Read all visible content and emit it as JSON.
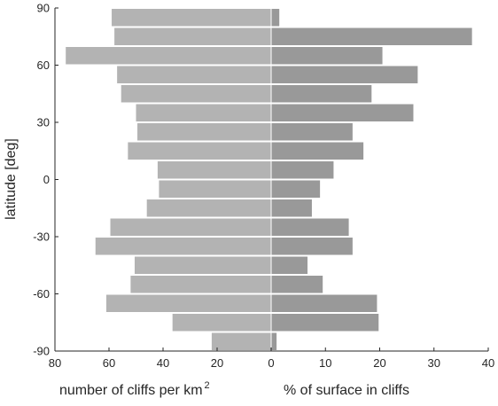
{
  "chart_data": {
    "type": "bar",
    "orientation": "horizontal",
    "layout": "back-to-back",
    "ylabel": "latitude [deg]",
    "ylim": [
      -90,
      90
    ],
    "yticks": [
      "-90",
      "-60",
      "-30",
      "0",
      "30",
      "60",
      "90"
    ],
    "xlabel_left": {
      "text": "number of cliffs per km",
      "superscript": "2"
    },
    "xlabel_right": "% of surface in cliffs",
    "left_xlim": [
      0,
      80
    ],
    "left_xticks": [
      "80",
      "60",
      "40",
      "20",
      "0"
    ],
    "right_xlim": [
      0,
      40
    ],
    "right_xticks": [
      "0",
      "10",
      "20",
      "30",
      "40"
    ],
    "bin_centers": [
      85,
      75,
      65,
      55,
      45,
      35,
      25,
      15,
      5,
      -5,
      -15,
      -25,
      -35,
      -45,
      -55,
      -65,
      -75,
      -85
    ],
    "bin_width": 10,
    "series": [
      {
        "side": "left",
        "color": "#b3b3b3",
        "values": [
          59,
          58,
          76,
          57,
          55.5,
          50,
          49.5,
          53,
          42,
          41.5,
          46,
          59.5,
          65,
          50.5,
          52,
          61,
          36.5,
          22
        ]
      },
      {
        "side": "right",
        "color": "#999999",
        "values": [
          1.5,
          37,
          20.5,
          27,
          18.5,
          26.2,
          15,
          17,
          11.5,
          9,
          7.5,
          14.3,
          15,
          6.7,
          9.5,
          19.5,
          19.8,
          1
        ]
      }
    ],
    "grid": false,
    "legend": "none"
  }
}
